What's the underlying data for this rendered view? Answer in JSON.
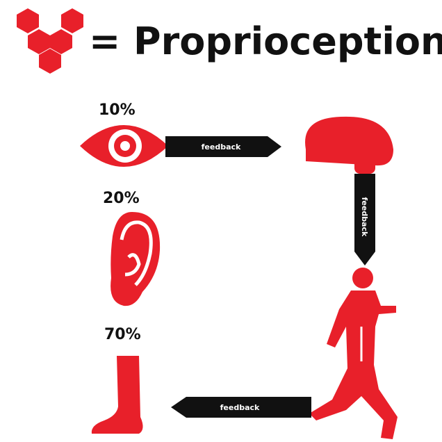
{
  "header": {
    "title": "= Proprioception"
  },
  "senses": [
    {
      "label": "10%"
    },
    {
      "label": "20%"
    },
    {
      "label": "70%"
    }
  ],
  "arrows": [
    {
      "label": "feedback"
    },
    {
      "label": "feedback"
    },
    {
      "label": "feedback"
    }
  ]
}
